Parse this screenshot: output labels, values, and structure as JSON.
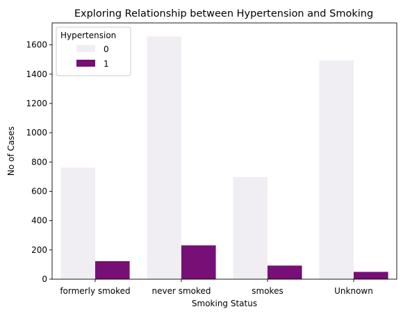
{
  "chart_data": {
    "type": "bar",
    "title": "Exploring Relationship between Hypertension and Smoking",
    "xlabel": "Smoking Status",
    "ylabel": "No of Cases",
    "categories": [
      "formerly smoked",
      "never smoked",
      "smokes",
      "Unknown"
    ],
    "series": [
      {
        "name": "0",
        "values": [
          762,
          1658,
          697,
          1494
        ],
        "color": "#f0eef2"
      },
      {
        "name": "1",
        "values": [
          123,
          231,
          93,
          50
        ],
        "color": "#760f76"
      }
    ],
    "ylim": [
      0,
      1750
    ],
    "yticks": [
      0,
      200,
      400,
      600,
      800,
      1000,
      1200,
      1400,
      1600
    ],
    "legend": {
      "title": "Hypertension",
      "placement": "top-left"
    },
    "grid": false
  }
}
